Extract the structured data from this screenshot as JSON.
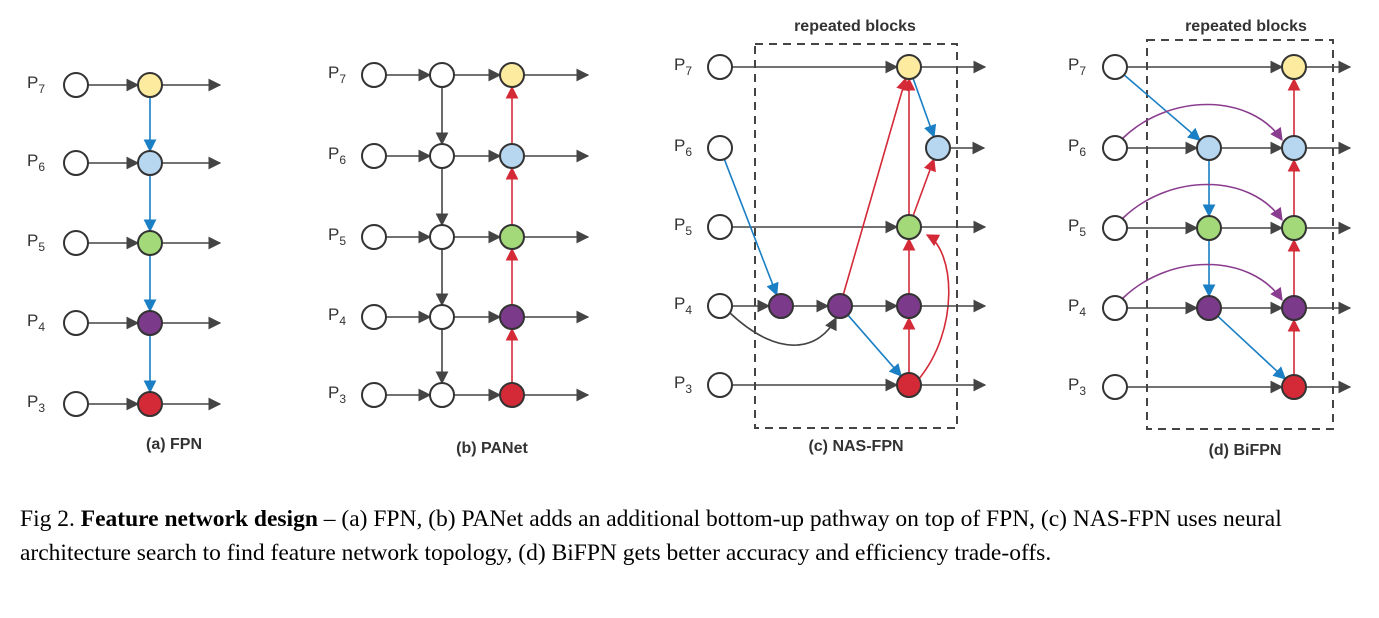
{
  "panels": [
    {
      "id": "a",
      "caption": "(a) FPN"
    },
    {
      "id": "b",
      "caption": "(b) PANet"
    },
    {
      "id": "c",
      "caption": "(c) NAS-FPN",
      "block_label": "repeated blocks"
    },
    {
      "id": "d",
      "caption": "(d) BiFPN",
      "block_label": "repeated blocks"
    }
  ],
  "levels": [
    {
      "base": "P",
      "sub": "7",
      "color": "#fdeba0"
    },
    {
      "base": "P",
      "sub": "6",
      "color": "#b7d6f0"
    },
    {
      "base": "P",
      "sub": "5",
      "color": "#a4d97a"
    },
    {
      "base": "P",
      "sub": "4",
      "color": "#7b3a8a"
    },
    {
      "base": "P",
      "sub": "3",
      "color": "#d42a38"
    }
  ],
  "edge_colors": {
    "gray": "#444444",
    "blue": "#1a7fc4",
    "red": "#d42a38",
    "purple": "#8a3d8f"
  },
  "caption": {
    "prefix": "Fig 2. ",
    "bold": "Feature network design",
    "text": " – (a) FPN, (b) PANet adds an additional bottom-up pathway on top of FPN, (c) NAS-FPN uses neural architecture search to find feature network topology, (d) BiFPN gets better accuracy and efficiency trade-offs."
  }
}
